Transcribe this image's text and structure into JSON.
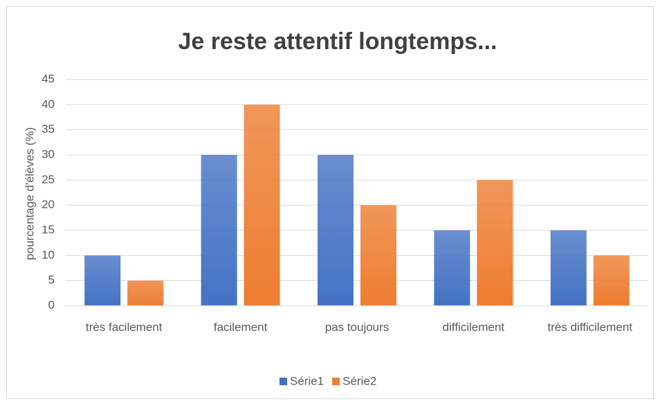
{
  "chart_data": {
    "type": "bar",
    "title": "Je reste attentif longtemps...",
    "y_label": "pourcentage d'élèves (%)",
    "categories": [
      "très facilement",
      "facilement",
      "pas toujours",
      "difficilement",
      "très difficilement"
    ],
    "series": [
      {
        "name": "Série1",
        "color": "#4472c4",
        "values": [
          10,
          30,
          30,
          15,
          15
        ]
      },
      {
        "name": "Série2",
        "color": "#ed7d31",
        "values": [
          5,
          40,
          20,
          25,
          10
        ]
      }
    ],
    "ylim": [
      0,
      45
    ],
    "yticks": [
      0,
      5,
      10,
      15,
      20,
      25,
      30,
      35,
      40,
      45
    ],
    "grid": true,
    "legend": "bottom"
  }
}
